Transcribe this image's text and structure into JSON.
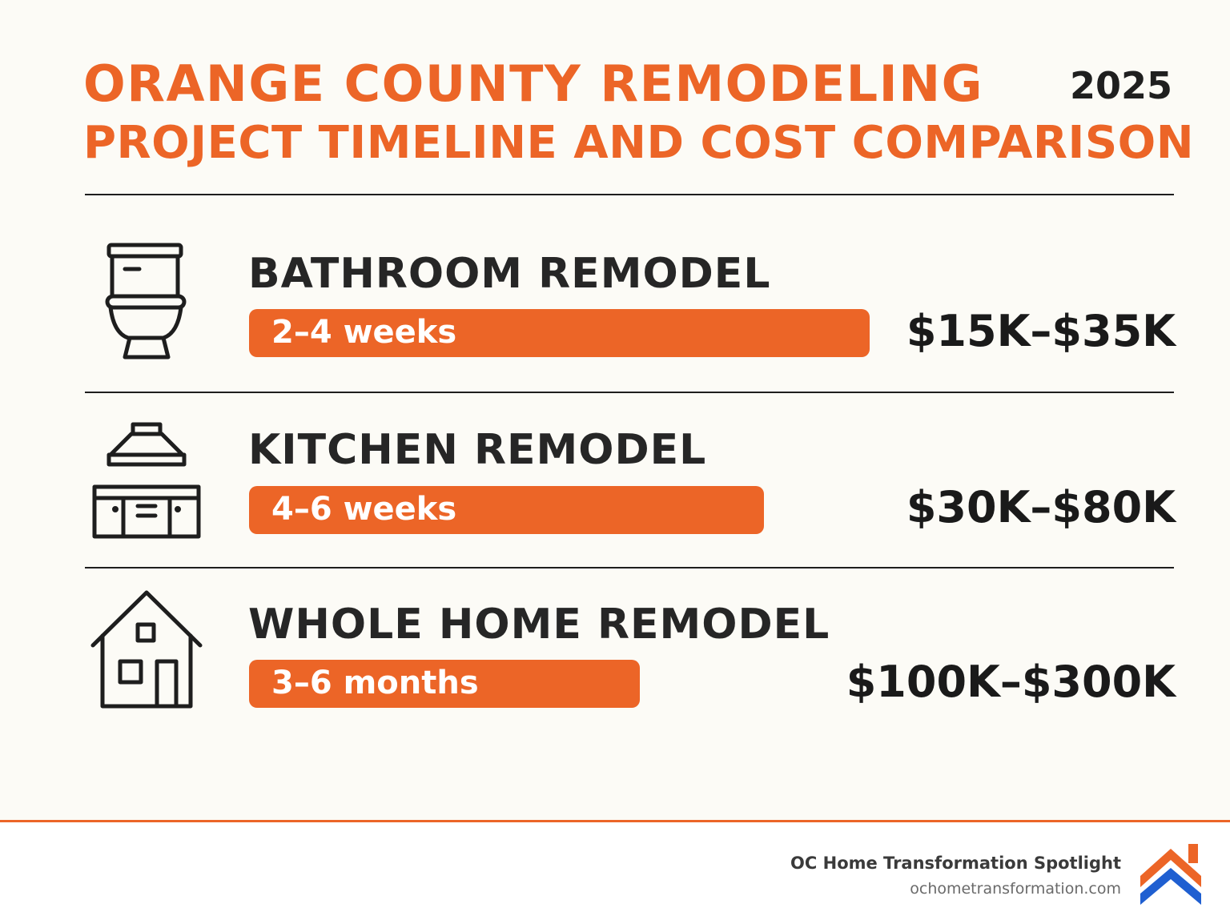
{
  "header": {
    "title_line1": "ORANGE COUNTY REMODELING",
    "title_line2": "PROJECT TIMELINE AND COST COMPARISON",
    "year": "2025"
  },
  "colors": {
    "accent": "#ec6527",
    "text": "#1f1f1f",
    "background": "#fcfbf6",
    "logo_blue": "#1f5fd1"
  },
  "chart_data": {
    "type": "bar",
    "title": "ORANGE COUNTY REMODELING PROJECT TIMELINE AND COST COMPARISON",
    "categories": [
      "BATHROOM REMODEL",
      "KITCHEN REMODEL",
      "WHOLE HOME REMODEL"
    ],
    "bar_labels": [
      "2–4 weeks",
      "4–6 weeks",
      "3–6 months"
    ],
    "bar_length_fraction": [
      1.0,
      0.83,
      0.63
    ],
    "costs": [
      "$15K–$35K",
      "$30K–$80K",
      "$100K–$300K"
    ],
    "icons": [
      "toilet-icon",
      "kitchen-icon",
      "house-icon"
    ]
  },
  "footer": {
    "brand": "OC Home Transformation Spotlight",
    "url": "ochometransformation.com",
    "logo_icon": "roof-logo-icon"
  }
}
